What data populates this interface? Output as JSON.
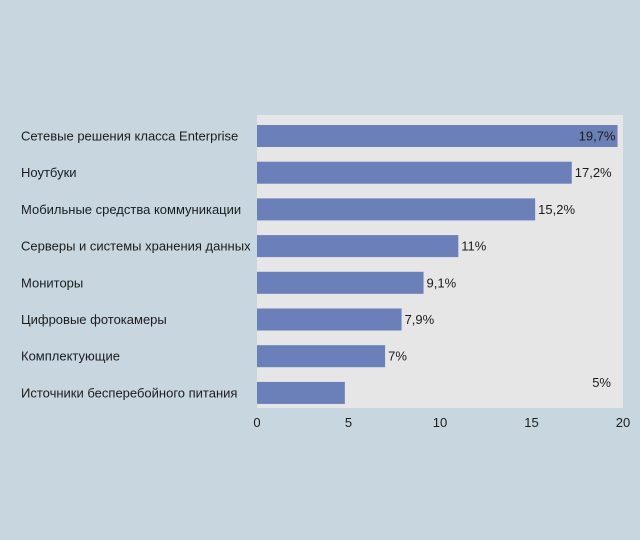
{
  "chart_data": {
    "type": "bar",
    "orientation": "horizontal",
    "categories": [
      "Сетевые решения класса Enterprise",
      "Ноутбуки",
      "Мобильные средства коммуникации",
      "Серверы и системы хранения данных",
      "Мониторы",
      "Цифровые фотокамеры",
      "Комплектующие",
      "Источники бесперебойного питания"
    ],
    "values": [
      19.7,
      17.2,
      15.2,
      11,
      9.1,
      7.9,
      7,
      4.8
    ],
    "data_labels": [
      "19,7%",
      "17,2%",
      "15,2%",
      "11%",
      "9,1%",
      "7,9%",
      "7%",
      "5%"
    ],
    "xlim": [
      0,
      20
    ],
    "x_ticks": [
      0,
      5,
      10,
      15,
      20
    ],
    "x_tick_labels": [
      "0",
      "5",
      "10",
      "15",
      "20"
    ],
    "title": "",
    "xlabel": "",
    "ylabel": "",
    "grid": false,
    "legend": "none",
    "colors": {
      "bar": "#6b7fb8",
      "plot_background": "#e6e6e6",
      "page_background": "#c7d6df",
      "text": "#1c1c1c"
    }
  }
}
